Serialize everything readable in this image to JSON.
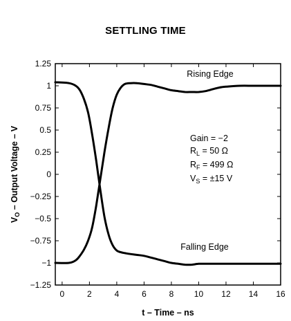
{
  "chart_data": {
    "type": "line",
    "title": "SETTLING TIME",
    "xlabel": "t – Time – ns",
    "ylabel_main": "V",
    "ylabel_sub": "O",
    "ylabel_rest": " – Output Voltage – V",
    "xlim": [
      -0.5,
      16
    ],
    "ylim": [
      -1.25,
      1.25
    ],
    "x_ticks": [
      0,
      2,
      4,
      6,
      8,
      10,
      12,
      14,
      16
    ],
    "x_tick_labels": [
      "0",
      "2",
      "4",
      "6",
      "8",
      "10",
      "12",
      "14",
      "16"
    ],
    "y_ticks": [
      1.25,
      1,
      0.75,
      0.5,
      0.25,
      0,
      -0.25,
      -0.5,
      -0.75,
      -1,
      -1.25
    ],
    "y_tick_labels": [
      "1.25",
      "1",
      "0.75",
      "0.5",
      "0.25",
      "0",
      "−0.25",
      "−0.5",
      "−0.75",
      "−1",
      "−1.25"
    ],
    "grid": false,
    "line_color": "#000000",
    "annotations": {
      "rising": "Rising Edge",
      "falling": "Falling Edge",
      "gain": "Gain = −2",
      "rl_main": "R",
      "rl_sub": "L",
      "rl_rest": " = 50 Ω",
      "rf_main": "R",
      "rf_sub": "F",
      "rf_rest": " = 499 Ω",
      "vs_main": "V",
      "vs_sub": "S",
      "vs_rest": " = ±15 V"
    },
    "series": [
      {
        "label": "Rising Edge",
        "x": [
          -0.5,
          0.5,
          1.0,
          1.3,
          1.6,
          1.9,
          2.2,
          2.5,
          2.8,
          3.1,
          3.4,
          3.7,
          4.0,
          4.3,
          4.6,
          5.0,
          5.5,
          6.0,
          6.5,
          7.0,
          7.5,
          8.0,
          8.5,
          9.0,
          9.5,
          10.0,
          10.5,
          11.0,
          11.5,
          12.0,
          13.0,
          14.0,
          15.0,
          16.0
        ],
        "y": [
          -1.0,
          -1.0,
          -0.97,
          -0.92,
          -0.85,
          -0.75,
          -0.6,
          -0.35,
          -0.05,
          0.25,
          0.52,
          0.75,
          0.9,
          0.98,
          1.02,
          1.03,
          1.03,
          1.02,
          1.01,
          0.99,
          0.97,
          0.95,
          0.94,
          0.93,
          0.93,
          0.93,
          0.94,
          0.96,
          0.98,
          0.99,
          1.0,
          1.0,
          1.0,
          1.0
        ]
      },
      {
        "label": "Falling Edge",
        "x": [
          -0.5,
          0.5,
          1.0,
          1.3,
          1.6,
          1.9,
          2.2,
          2.5,
          2.8,
          3.1,
          3.4,
          3.7,
          4.0,
          4.3,
          4.6,
          5.0,
          5.5,
          6.0,
          6.5,
          7.0,
          7.5,
          8.0,
          8.5,
          9.0,
          9.5,
          10.0,
          10.5,
          11.0,
          11.5,
          12.0,
          13.0,
          14.0,
          15.0,
          16.0
        ],
        "y": [
          1.04,
          1.03,
          1.0,
          0.95,
          0.85,
          0.7,
          0.45,
          0.15,
          -0.18,
          -0.48,
          -0.68,
          -0.8,
          -0.86,
          -0.88,
          -0.89,
          -0.9,
          -0.91,
          -0.92,
          -0.94,
          -0.96,
          -0.98,
          -1.0,
          -1.01,
          -1.02,
          -1.02,
          -1.01,
          -1.01,
          -1.01,
          -1.01,
          -1.01,
          -1.01,
          -1.01,
          -1.01,
          -1.01
        ]
      }
    ]
  }
}
